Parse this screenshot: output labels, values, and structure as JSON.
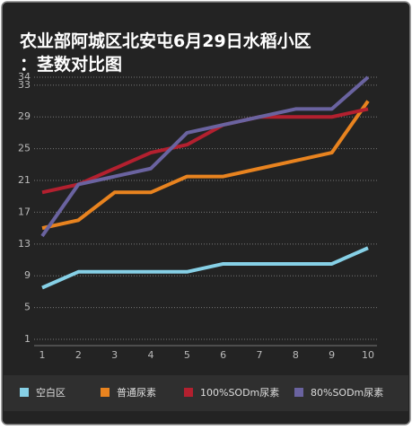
{
  "chart_data": {
    "type": "line",
    "title": "农业部阿城区北安屯6月29日水稻小区：茎数对比图",
    "categories": [
      "1",
      "2",
      "3",
      "4",
      "5",
      "6",
      "7",
      "8",
      "9",
      "10"
    ],
    "ylim": [
      1,
      34
    ],
    "yticks": [
      1,
      5,
      9,
      13,
      17,
      21,
      25,
      29,
      33,
      34
    ],
    "grid": true,
    "legend": "bottom",
    "series": [
      {
        "name": "空白区",
        "color": "#86d0e6",
        "values": [
          7.5,
          9.5,
          9.5,
          9.5,
          9.5,
          10.5,
          10.5,
          10.5,
          10.5,
          12.5
        ]
      },
      {
        "name": "普通尿素",
        "color": "#e8831f",
        "values": [
          15,
          16,
          19.5,
          19.5,
          21.5,
          21.5,
          22.5,
          23.5,
          24.5,
          31
        ]
      },
      {
        "name": "100%SODm尿素",
        "color": "#b3202f",
        "values": [
          19.5,
          20.5,
          22.5,
          24.5,
          25.5,
          28,
          29,
          29,
          29,
          30
        ]
      },
      {
        "name": "80%SODm尿素",
        "color": "#6a63a0",
        "values": [
          14,
          20.5,
          21.5,
          22.5,
          27,
          28,
          29,
          30,
          30,
          34
        ]
      }
    ]
  }
}
